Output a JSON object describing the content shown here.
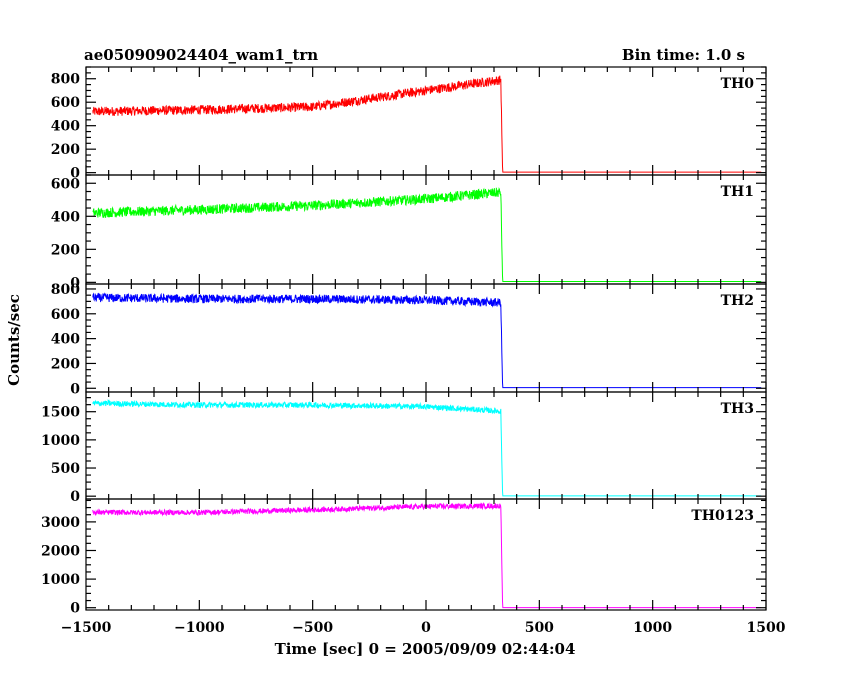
{
  "header": {
    "title": "ae050909024404_wam1_trn",
    "bin_time": "Bin time: 1.0 s"
  },
  "chart_data": {
    "type": "line",
    "title": "ae050909024404_wam1_trn",
    "xlabel": "Time [sec] 0 = 2005/09/09 02:44:04",
    "ylabel": "Counts/sec",
    "xlim": [
      -1500,
      1500
    ],
    "x_ticks": [
      -1500,
      -1000,
      -500,
      0,
      500,
      1000,
      1500
    ],
    "x_tick_labels": [
      "−1500",
      "−1000",
      "−500",
      "0",
      "500",
      "1000",
      "1500"
    ],
    "bin_time_s": 1.0,
    "panels": [
      {
        "name": "TH0",
        "color": "#ff0000",
        "ylim": [
          -20,
          900
        ],
        "y_ticks": [
          0,
          200,
          400,
          600,
          800
        ],
        "trend": {
          "x": [
            -1470,
            -1000,
            -500,
            0,
            330,
            338,
            1480
          ],
          "y": [
            520,
            535,
            560,
            700,
            790,
            5,
            5
          ]
        },
        "noise_amplitude": 40
      },
      {
        "name": "TH1",
        "color": "#00ff00",
        "ylim": [
          -10,
          650
        ],
        "y_ticks": [
          0,
          200,
          400,
          600
        ],
        "trend": {
          "x": [
            -1470,
            -1000,
            -500,
            0,
            330,
            338,
            1480
          ],
          "y": [
            420,
            440,
            465,
            505,
            545,
            5,
            5
          ]
        },
        "noise_amplitude": 30
      },
      {
        "name": "TH2",
        "color": "#0000ff",
        "ylim": [
          -30,
          840
        ],
        "y_ticks": [
          0,
          200,
          400,
          600,
          800
        ],
        "trend": {
          "x": [
            -1470,
            -1000,
            -500,
            0,
            330,
            338,
            1480
          ],
          "y": [
            730,
            720,
            720,
            710,
            690,
            5,
            5
          ]
        },
        "noise_amplitude": 35
      },
      {
        "name": "TH3",
        "color": "#00ffff",
        "ylim": [
          -50,
          1850
        ],
        "y_ticks": [
          0,
          500,
          1000,
          1500
        ],
        "trend": {
          "x": [
            -1470,
            -1000,
            -500,
            0,
            330,
            338,
            1480
          ],
          "y": [
            1650,
            1620,
            1620,
            1590,
            1510,
            5,
            5
          ]
        },
        "noise_amplitude": 50
      },
      {
        "name": "TH0123",
        "color": "#ff00ff",
        "ylim": [
          -80,
          3800
        ],
        "y_ticks": [
          0,
          1000,
          2000,
          3000
        ],
        "trend": {
          "x": [
            -1470,
            -1000,
            -500,
            0,
            330,
            338,
            1480
          ],
          "y": [
            3330,
            3330,
            3420,
            3540,
            3560,
            5,
            5
          ]
        },
        "noise_amplitude": 90
      }
    ]
  }
}
